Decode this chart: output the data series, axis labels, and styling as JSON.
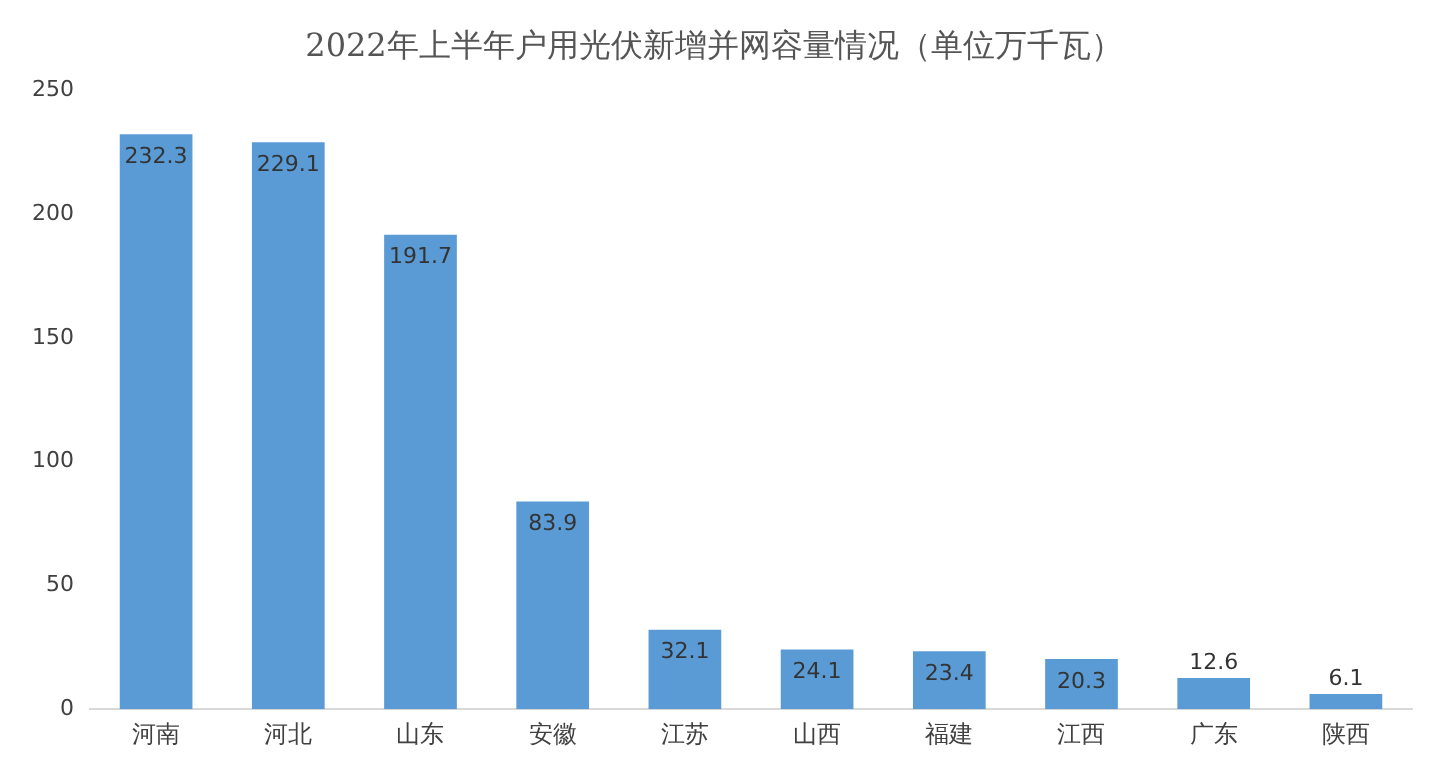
{
  "chart_data": {
    "type": "bar",
    "title": "2022年上半年户用光伏新增并网容量情况（单位万千瓦）",
    "categories": [
      "河南",
      "河北",
      "山东",
      "安徽",
      "江苏",
      "山西",
      "福建",
      "江西",
      "广东",
      "陕西"
    ],
    "values": [
      232.3,
      229.1,
      191.7,
      83.9,
      32.1,
      24.1,
      23.4,
      20.3,
      12.6,
      6.1
    ],
    "color": "#5b9bd5",
    "ylim": [
      0,
      250
    ],
    "yticks": [
      0,
      50,
      100,
      150,
      200,
      250
    ],
    "grid": false,
    "data_labels": true,
    "legend": false
  }
}
